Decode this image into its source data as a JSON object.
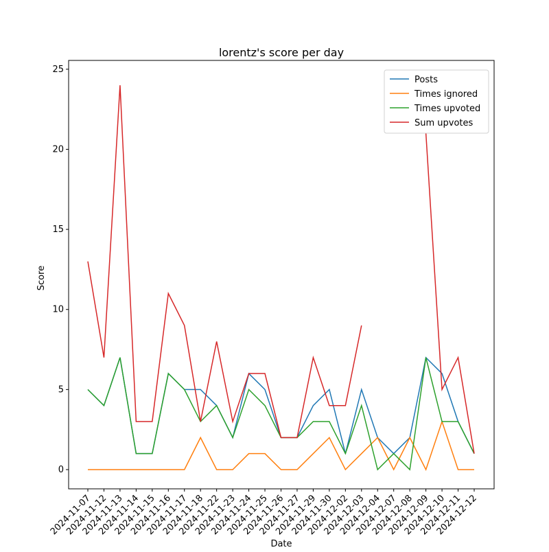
{
  "chart_data": {
    "type": "line",
    "title": "lorentz's score per day",
    "xlabel": "Date",
    "ylabel": "Score",
    "categories": [
      "2024-11-07",
      "2024-11-12",
      "2024-11-13",
      "2024-11-14",
      "2024-11-15",
      "2024-11-16",
      "2024-11-17",
      "2024-11-18",
      "2024-11-22",
      "2024-11-23",
      "2024-11-24",
      "2024-11-25",
      "2024-11-26",
      "2024-11-27",
      "2024-11-29",
      "2024-11-30",
      "2024-12-02",
      "2024-12-03",
      "2024-12-04",
      "2024-12-07",
      "2024-12-08",
      "2024-12-09",
      "2024-12-10",
      "2024-12-11",
      "2024-12-12"
    ],
    "series": [
      {
        "name": "Posts",
        "color": "#1f77b4",
        "values": [
          5,
          4,
          7,
          1,
          1,
          6,
          5,
          5,
          4,
          2,
          6,
          5,
          2,
          2,
          4,
          5,
          1,
          5,
          2,
          1,
          2,
          7,
          6,
          3,
          1
        ]
      },
      {
        "name": "Times ignored",
        "color": "#ff7f0e",
        "values": [
          0,
          0,
          0,
          0,
          0,
          0,
          0,
          2,
          0,
          0,
          1,
          1,
          0,
          0,
          1,
          2,
          0,
          1,
          2,
          0,
          2,
          0,
          3,
          0,
          0
        ]
      },
      {
        "name": "Times upvoted",
        "color": "#2ca02c",
        "values": [
          5,
          4,
          7,
          1,
          1,
          6,
          5,
          3,
          4,
          2,
          5,
          4,
          2,
          2,
          3,
          3,
          1,
          4,
          0,
          1,
          0,
          7,
          3,
          3,
          1
        ]
      },
      {
        "name": "Sum upvotes",
        "color": "#d62728",
        "values": [
          13,
          7,
          24,
          3,
          3,
          11,
          9,
          3,
          8,
          3,
          6,
          6,
          2,
          2,
          7,
          4,
          4,
          9,
          null,
          null,
          null,
          21,
          5,
          7,
          1
        ]
      }
    ],
    "ylim": [
      -1.2,
      25.55
    ],
    "yticks": [
      0,
      5,
      10,
      15,
      20,
      25
    ],
    "legend": "upper right"
  }
}
